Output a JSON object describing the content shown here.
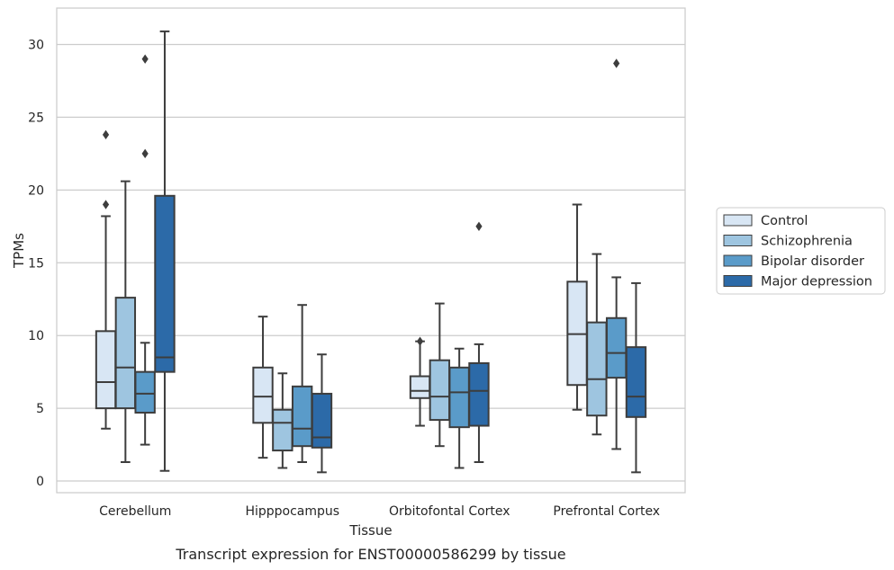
{
  "chart_data": {
    "type": "boxplot",
    "caption": "Transcript expression for ENST00000586299 by tissue",
    "xlabel": "Tissue",
    "ylabel": "TPMs",
    "ylim": [
      -0.8,
      32.5
    ],
    "yticks": [
      0,
      5,
      10,
      15,
      20,
      25,
      30
    ],
    "grid": "horizontal",
    "legend_position": "right",
    "categories": [
      "Cerebellum",
      "Hipppocampus",
      "Orbitofontal Cortex",
      "Prefrontal Cortex"
    ],
    "series": [
      {
        "name": "Control",
        "color": "#d8e6f4",
        "boxes": [
          {
            "whislo": 3.6,
            "q1": 5.0,
            "med": 6.8,
            "q3": 10.3,
            "whishi": 18.2,
            "fliers": [
              19.0,
              23.8
            ]
          },
          {
            "whislo": 1.6,
            "q1": 4.0,
            "med": 5.8,
            "q3": 7.8,
            "whishi": 11.3,
            "fliers": []
          },
          {
            "whislo": 3.8,
            "q1": 5.7,
            "med": 6.2,
            "q3": 7.2,
            "whishi": 9.6,
            "fliers": [
              9.6
            ]
          },
          {
            "whislo": 4.9,
            "q1": 6.6,
            "med": 10.1,
            "q3": 13.7,
            "whishi": 19.0,
            "fliers": []
          }
        ]
      },
      {
        "name": "Schizophrenia",
        "color": "#9ec5e0",
        "boxes": [
          {
            "whislo": 1.3,
            "q1": 5.0,
            "med": 7.8,
            "q3": 12.6,
            "whishi": 20.6,
            "fliers": []
          },
          {
            "whislo": 0.9,
            "q1": 2.1,
            "med": 4.0,
            "q3": 4.9,
            "whishi": 7.4,
            "fliers": []
          },
          {
            "whislo": 2.4,
            "q1": 4.2,
            "med": 5.8,
            "q3": 8.3,
            "whishi": 12.2,
            "fliers": []
          },
          {
            "whislo": 3.2,
            "q1": 4.5,
            "med": 7.0,
            "q3": 10.9,
            "whishi": 15.6,
            "fliers": []
          }
        ]
      },
      {
        "name": "Bipolar disorder",
        "color": "#5a9bc9",
        "boxes": [
          {
            "whislo": 2.5,
            "q1": 4.7,
            "med": 6.0,
            "q3": 7.5,
            "whishi": 9.5,
            "fliers": [
              22.5,
              29.0
            ]
          },
          {
            "whislo": 1.3,
            "q1": 2.4,
            "med": 3.6,
            "q3": 6.5,
            "whishi": 12.1,
            "fliers": []
          },
          {
            "whislo": 0.9,
            "q1": 3.7,
            "med": 6.1,
            "q3": 7.8,
            "whishi": 9.1,
            "fliers": []
          },
          {
            "whislo": 2.2,
            "q1": 7.1,
            "med": 8.8,
            "q3": 11.2,
            "whishi": 14.0,
            "fliers": [
              28.7
            ]
          }
        ]
      },
      {
        "name": "Major depression",
        "color": "#2c6aa8",
        "boxes": [
          {
            "whislo": 0.7,
            "q1": 7.5,
            "med": 8.5,
            "q3": 19.6,
            "whishi": 30.9,
            "fliers": []
          },
          {
            "whislo": 0.6,
            "q1": 2.3,
            "med": 3.0,
            "q3": 6.0,
            "whishi": 8.7,
            "fliers": []
          },
          {
            "whislo": 1.3,
            "q1": 3.8,
            "med": 6.2,
            "q3": 8.1,
            "whishi": 9.4,
            "fliers": [
              17.5
            ]
          },
          {
            "whislo": 0.6,
            "q1": 4.4,
            "med": 5.8,
            "q3": 9.2,
            "whishi": 13.6,
            "fliers": []
          }
        ]
      }
    ]
  }
}
